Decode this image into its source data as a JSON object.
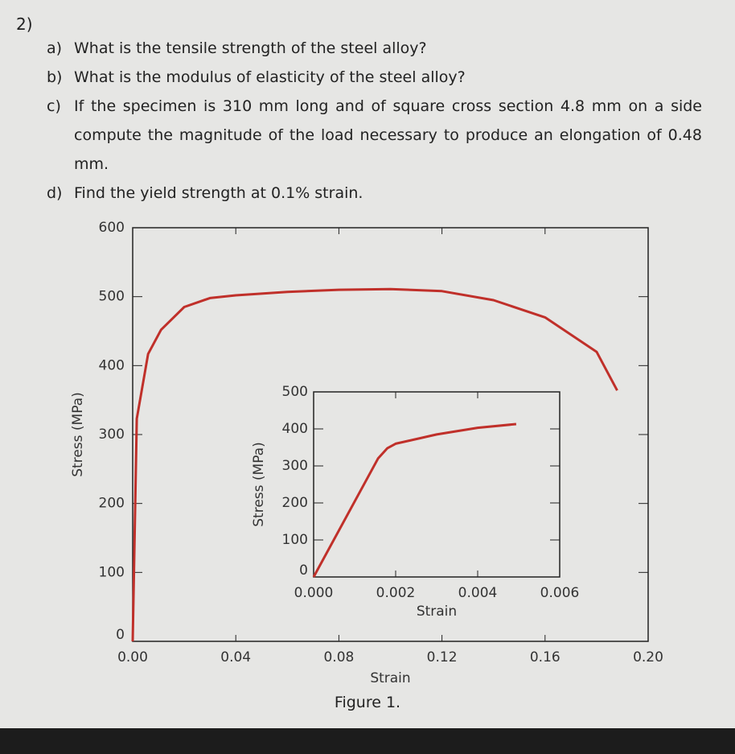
{
  "number": "2)",
  "questions": [
    {
      "label": "a)",
      "text": "What is the tensile strength of the steel alloy?"
    },
    {
      "label": "b)",
      "text": "What is the modulus of elasticity of the steel alloy?"
    },
    {
      "label": "c)",
      "text": "If the specimen is 310 mm long and of square cross section 4.8 mm on a side compute the magnitude of the load necessary to produce an elongation of 0.48 mm."
    },
    {
      "label": "d)",
      "text": "Find the yield strength at 0.1% strain."
    }
  ],
  "chart_data": [
    {
      "type": "line",
      "x_label": "Strain",
      "y_label": "Stress (MPa)",
      "x": [
        0,
        0.0016,
        0.006,
        0.011,
        0.02,
        0.03,
        0.04,
        0.06,
        0.08,
        0.1,
        0.12,
        0.14,
        0.16,
        0.18,
        0.188
      ],
      "series": [
        {
          "color": "#c0302a",
          "values": [
            0,
            323,
            417,
            452,
            485,
            498,
            502,
            507,
            510,
            511,
            508,
            495,
            470,
            420,
            364
          ]
        }
      ],
      "xlim": [
        0,
        0.2
      ],
      "ylim": [
        0,
        600
      ],
      "xticks": [
        {
          "value": 0,
          "label": "0.00"
        },
        {
          "value": 0.04,
          "label": "0.04"
        },
        {
          "value": 0.08,
          "label": "0.08"
        },
        {
          "value": 0.12,
          "label": "0.12"
        },
        {
          "value": 0.16,
          "label": "0.16"
        },
        {
          "value": 0.2,
          "label": "0.20"
        }
      ],
      "yticks": [
        0,
        100,
        200,
        300,
        400,
        500,
        600
      ]
    },
    {
      "type": "line",
      "x_label": "Strain",
      "y_label": "Stress (MPa)",
      "x": [
        0,
        0.00157,
        0.0018,
        0.002,
        0.003,
        0.004,
        0.00494
      ],
      "series": [
        {
          "color": "#c0302a",
          "values": [
            0,
            320,
            348,
            360,
            385,
            403,
            413
          ]
        }
      ],
      "xlim": [
        0,
        0.006
      ],
      "ylim": [
        0,
        500
      ],
      "xticks": [
        {
          "value": 0,
          "label": "0.000"
        },
        {
          "value": 0.002,
          "label": "0.002"
        },
        {
          "value": 0.004,
          "label": "0.004"
        },
        {
          "value": 0.006,
          "label": "0.006"
        }
      ],
      "yticks": [
        0,
        100,
        200,
        300,
        400,
        500
      ]
    }
  ],
  "caption": "Figure 1."
}
